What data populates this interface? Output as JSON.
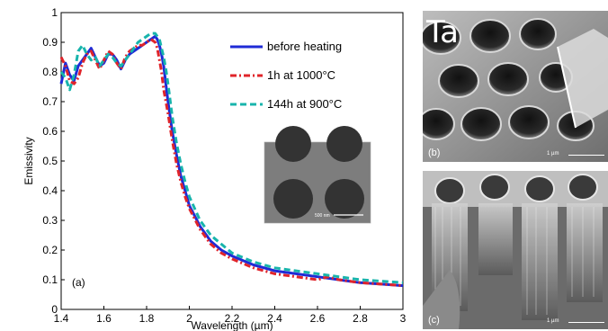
{
  "chart_data": {
    "type": "line",
    "xlabel": "Wavelength (µm)",
    "ylabel": "Emissivity",
    "xlim": [
      1.4,
      3.0
    ],
    "ylim": [
      0,
      1.0
    ],
    "xticks": [
      "1.4",
      "1.6",
      "1.8",
      "2",
      "2.2",
      "2.4",
      "2.6",
      "2.8",
      "3"
    ],
    "yticks": [
      "0",
      "0.1",
      "0.2",
      "0.3",
      "0.4",
      "0.5",
      "0.6",
      "0.7",
      "0.8",
      "0.9",
      "1"
    ],
    "panel_label": "(a)",
    "legend_position": "top-right",
    "grid": false,
    "series": [
      {
        "name": "before heating",
        "color": "#1f2bd6",
        "dash": "solid",
        "x": [
          1.4,
          1.42,
          1.44,
          1.46,
          1.48,
          1.5,
          1.52,
          1.54,
          1.56,
          1.58,
          1.6,
          1.62,
          1.64,
          1.66,
          1.68,
          1.7,
          1.72,
          1.74,
          1.76,
          1.78,
          1.8,
          1.82,
          1.84,
          1.85,
          1.86,
          1.87,
          1.88,
          1.89,
          1.9,
          1.92,
          1.94,
          1.96,
          1.98,
          2.0,
          2.05,
          2.1,
          2.15,
          2.2,
          2.3,
          2.4,
          2.5,
          2.6,
          2.7,
          2.8,
          2.9,
          3.0
        ],
        "y": [
          0.76,
          0.83,
          0.79,
          0.77,
          0.82,
          0.84,
          0.86,
          0.88,
          0.85,
          0.82,
          0.83,
          0.86,
          0.86,
          0.84,
          0.81,
          0.84,
          0.86,
          0.87,
          0.88,
          0.89,
          0.9,
          0.91,
          0.92,
          0.91,
          0.89,
          0.86,
          0.82,
          0.76,
          0.7,
          0.6,
          0.52,
          0.45,
          0.4,
          0.35,
          0.28,
          0.23,
          0.2,
          0.18,
          0.15,
          0.13,
          0.12,
          0.11,
          0.1,
          0.09,
          0.085,
          0.08
        ]
      },
      {
        "name": "1h at 1000°C",
        "color": "#e0242a",
        "dash": "dashdot",
        "x": [
          1.4,
          1.42,
          1.44,
          1.46,
          1.48,
          1.5,
          1.52,
          1.54,
          1.56,
          1.58,
          1.6,
          1.62,
          1.64,
          1.66,
          1.68,
          1.7,
          1.72,
          1.74,
          1.76,
          1.78,
          1.8,
          1.82,
          1.84,
          1.85,
          1.86,
          1.87,
          1.88,
          1.9,
          1.92,
          1.94,
          1.96,
          1.98,
          2.0,
          2.05,
          2.1,
          2.15,
          2.2,
          2.3,
          2.4,
          2.5,
          2.6,
          2.65,
          2.7,
          2.8,
          2.9,
          3.0
        ],
        "y": [
          0.85,
          0.82,
          0.77,
          0.76,
          0.78,
          0.83,
          0.86,
          0.87,
          0.84,
          0.81,
          0.84,
          0.87,
          0.86,
          0.83,
          0.81,
          0.85,
          0.87,
          0.88,
          0.89,
          0.89,
          0.9,
          0.91,
          0.9,
          0.88,
          0.84,
          0.8,
          0.74,
          0.66,
          0.57,
          0.49,
          0.43,
          0.38,
          0.34,
          0.27,
          0.22,
          0.19,
          0.17,
          0.14,
          0.12,
          0.11,
          0.1,
          0.11,
          0.1,
          0.09,
          0.085,
          0.08
        ]
      },
      {
        "name": "144h at 900°C",
        "color": "#18b4ac",
        "dash": "dashed",
        "x": [
          1.4,
          1.42,
          1.44,
          1.46,
          1.48,
          1.5,
          1.52,
          1.54,
          1.56,
          1.58,
          1.6,
          1.62,
          1.64,
          1.66,
          1.68,
          1.7,
          1.72,
          1.74,
          1.76,
          1.78,
          1.8,
          1.82,
          1.84,
          1.85,
          1.86,
          1.87,
          1.88,
          1.89,
          1.9,
          1.92,
          1.94,
          1.96,
          1.98,
          2.0,
          2.05,
          2.1,
          2.15,
          2.2,
          2.3,
          2.4,
          2.5,
          2.6,
          2.7,
          2.8,
          2.9,
          3.0
        ],
        "y": [
          0.8,
          0.78,
          0.74,
          0.79,
          0.87,
          0.89,
          0.86,
          0.84,
          0.85,
          0.82,
          0.84,
          0.86,
          0.85,
          0.83,
          0.82,
          0.84,
          0.86,
          0.88,
          0.9,
          0.91,
          0.92,
          0.93,
          0.93,
          0.92,
          0.91,
          0.88,
          0.85,
          0.81,
          0.76,
          0.65,
          0.56,
          0.49,
          0.43,
          0.38,
          0.3,
          0.25,
          0.22,
          0.19,
          0.16,
          0.14,
          0.13,
          0.12,
          0.11,
          0.1,
          0.095,
          0.09
        ]
      }
    ],
    "inset": {
      "scale_label": "500 nm"
    }
  },
  "sem_panels": {
    "overlay_text": "Ta",
    "top": {
      "label": "(b)",
      "scale": "1 µm"
    },
    "bottom": {
      "label": "(c)",
      "scale": "1 µm"
    }
  }
}
